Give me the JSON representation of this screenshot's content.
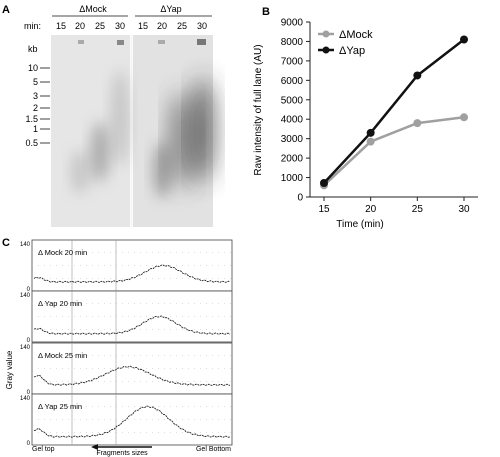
{
  "panel_a": {
    "letter": "A",
    "min_label": "min:",
    "kb_label": "kb",
    "groups": [
      {
        "name": "ΔMock",
        "lanes": [
          "15",
          "20",
          "25",
          "30"
        ]
      },
      {
        "name": "ΔYap",
        "lanes": [
          "15",
          "20",
          "25",
          "30"
        ]
      }
    ],
    "markers": [
      "10",
      "5",
      "3",
      "2",
      "1.5",
      "1",
      "0.5"
    ]
  },
  "panel_c": {
    "letter": "C",
    "ylabel": "Gray value",
    "ymax_label": "140",
    "ymin_label": "0",
    "traces": [
      {
        "label": "Δ Mock 20 min"
      },
      {
        "label": "Δ Yap 20 min"
      },
      {
        "label": "Δ Mock 25 min"
      },
      {
        "label": "Δ Yap 25 min"
      }
    ],
    "left_caption": "Gel top",
    "right_caption": "Gel Bottom",
    "arrow_caption": "Fragments sizes"
  },
  "chart_data": {
    "type": "line",
    "panel": "B",
    "x": [
      15,
      20,
      25,
      30
    ],
    "series": [
      {
        "name": "ΔMock",
        "color": "#a0a0a0",
        "values": [
          600,
          2850,
          3800,
          4100
        ]
      },
      {
        "name": "ΔYap",
        "color": "#111111",
        "values": [
          720,
          3300,
          6250,
          8100
        ]
      }
    ],
    "xlabel": "Time (min)",
    "ylabel": "Raw intensity of full lane (AU)",
    "xlim": [
      15,
      30
    ],
    "ylim": [
      0,
      9000
    ],
    "yticks": [
      0,
      1000,
      2000,
      3000,
      4000,
      5000,
      6000,
      7000,
      8000,
      9000
    ],
    "grid": false,
    "legend_position": "top-left"
  }
}
